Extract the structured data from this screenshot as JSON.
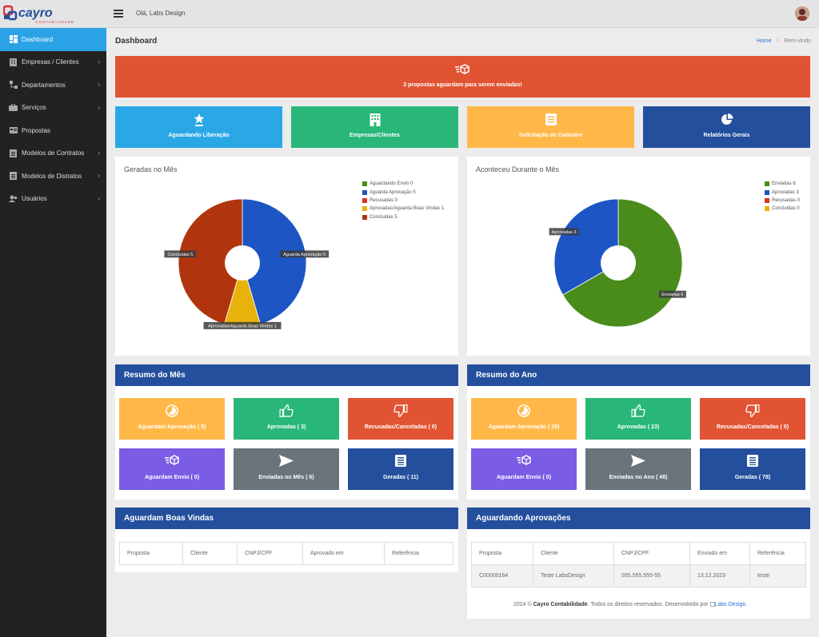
{
  "brand": {
    "logo_main": "Cayro",
    "logo_sub": "CONTABILIDADE",
    "accent": "#d9343d"
  },
  "topbar": {
    "greeting": "Olá, Labs Design"
  },
  "sidebar": {
    "items": [
      {
        "label": "Dashboard",
        "icon": "dashboard-icon",
        "active": true
      },
      {
        "label": "Empresas / Clientes",
        "icon": "building-icon"
      },
      {
        "label": "Departamentos",
        "icon": "sitemap-icon"
      },
      {
        "label": "Serviços",
        "icon": "briefcase-icon"
      },
      {
        "label": "Propostas",
        "icon": "card-icon"
      },
      {
        "label": "Modelos de Contratos",
        "icon": "document-icon"
      },
      {
        "label": "Modelos de Distratos",
        "icon": "document-icon"
      },
      {
        "label": "Usuários",
        "icon": "users-icon"
      }
    ]
  },
  "page": {
    "title": "Dashboard",
    "breadcrumb_home": "Home",
    "breadcrumb_sep": ">",
    "breadcrumb_current": "Bem-vindo"
  },
  "alert": {
    "text": "3 propostas aguardam para serem enviadas!",
    "color": "#e05433"
  },
  "tiles": [
    {
      "label": "Aguardando Liberação",
      "color": "#2aa8e6",
      "icon": "star-stack-icon"
    },
    {
      "label": "Empresas/Clientes",
      "color": "#28b779",
      "icon": "building-icon"
    },
    {
      "label": "Solicitação de Cadastro",
      "color": "#ffb848",
      "icon": "list-icon"
    },
    {
      "label": "Relatórios Gerais",
      "color": "#234f9c",
      "icon": "pie-chart-icon"
    }
  ],
  "chart_data": [
    {
      "type": "pie",
      "title": "Geradas no Mês",
      "donut": true,
      "legend_position": "top-right",
      "series": [
        {
          "name": "Aguardando Envio",
          "value": 0,
          "color": "#4a8c1c"
        },
        {
          "name": "Aguarda Aprovação",
          "value": 5,
          "color": "#1d55c4"
        },
        {
          "name": "Recusadas",
          "value": 0,
          "color": "#d9341f"
        },
        {
          "name": "Aprovadas/Aguarda Boas Vindas",
          "value": 1,
          "color": "#e8b20c"
        },
        {
          "name": "Concluidas",
          "value": 5,
          "color": "#b0350e"
        }
      ]
    },
    {
      "type": "pie",
      "title": "Aconteceu Durante o Mês",
      "donut": true,
      "legend_position": "top-right",
      "series": [
        {
          "name": "Enviadas",
          "value": 6,
          "color": "#4a8c1c"
        },
        {
          "name": "Aprovadas",
          "value": 3,
          "color": "#1d55c4"
        },
        {
          "name": "Recusadas",
          "value": 0,
          "color": "#d9341f"
        },
        {
          "name": "Concluidas",
          "value": 0,
          "color": "#e8b20c"
        }
      ]
    }
  ],
  "resumo_mes": {
    "title": "Resumo do Mês",
    "cards": [
      {
        "label": "Aguardam Aprovação ( 5)",
        "color": "#ffb848",
        "icon": "hourglass-icon"
      },
      {
        "label": "Aprovadas ( 3)",
        "color": "#28b779",
        "icon": "thumbs-up-icon"
      },
      {
        "label": "Recusadas/Canceladas ( 0)",
        "color": "#e05433",
        "icon": "thumbs-down-icon"
      },
      {
        "label": "Aguardam Envio ( 0)",
        "color": "#7b5ce5",
        "icon": "shipping-icon"
      },
      {
        "label": "Enviadas no Mês ( 6)",
        "color": "#6b737b",
        "icon": "send-icon"
      },
      {
        "label": "Geradas ( 11)",
        "color": "#234f9c",
        "icon": "list-icon"
      }
    ]
  },
  "resumo_ano": {
    "title": "Resumo do Ano",
    "cards": [
      {
        "label": "Aguardam Aprovação ( 29)",
        "color": "#ffb848",
        "icon": "hourglass-icon"
      },
      {
        "label": "Aprovadas ( 23)",
        "color": "#28b779",
        "icon": "thumbs-up-icon"
      },
      {
        "label": "Recusadas/Canceladas ( 0)",
        "color": "#e05433",
        "icon": "thumbs-down-icon"
      },
      {
        "label": "Aguardam Envio ( 0)",
        "color": "#7b5ce5",
        "icon": "shipping-icon"
      },
      {
        "label": "Enviadas no Ano ( 48)",
        "color": "#6b737b",
        "icon": "send-icon"
      },
      {
        "label": "Geradas ( 78)",
        "color": "#234f9c",
        "icon": "list-icon"
      }
    ]
  },
  "boas_vindas": {
    "title": "Aguardam Boas Vindas",
    "columns": [
      "Proposta",
      "Cliente",
      "CNPJ/CPF",
      "Aprovado em",
      "Referência"
    ],
    "rows": []
  },
  "aprovacoes": {
    "title": "Aguardando Aprovações",
    "columns": [
      "Proposta",
      "Cliente",
      "CNPJ/CPF",
      "Enviado em",
      "Referência"
    ],
    "rows": [
      [
        "C00000164",
        "Teste LabsDesign",
        "555.555.555-55",
        "13.12.2023",
        "teste"
      ]
    ]
  },
  "footer": {
    "prefix": "2024 © ",
    "company": "Cayro Contabilidade",
    "middle": ". Todos os direitos reservados. Desenvolvido por ",
    "link": "Labs Design."
  }
}
